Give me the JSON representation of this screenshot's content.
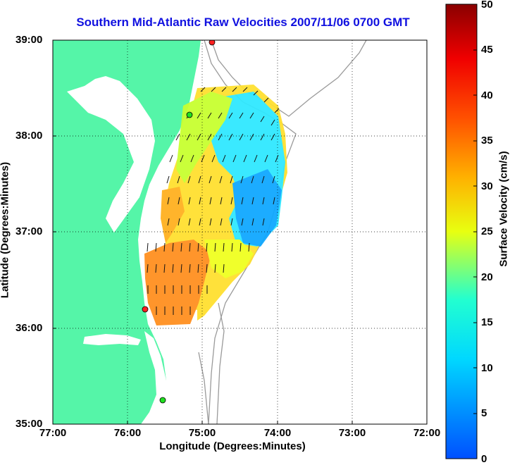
{
  "title": "Southern Mid-Atlantic Raw Velocities 2007/11/06 0700 GMT",
  "x_axis": {
    "label": "Longitude (Degrees:Minutes)",
    "ticks": [
      "77:00",
      "76:00",
      "75:00",
      "74:00",
      "73:00",
      "72:00"
    ]
  },
  "y_axis": {
    "label": "Latitude (Degrees:Minutes)",
    "ticks": [
      "39:00",
      "38:00",
      "37:00",
      "36:00",
      "35:00"
    ]
  },
  "colorbar": {
    "label": "Surface Velocity (cm/s)",
    "ticks": [
      "50",
      "45",
      "40",
      "35",
      "30",
      "25",
      "20",
      "15",
      "10",
      "5",
      "0"
    ],
    "min": 0,
    "max": 50,
    "colormap": "jet"
  },
  "map": {
    "lon_range": [
      -77,
      -72
    ],
    "lat_range": [
      35,
      39
    ],
    "grid": true,
    "land_color": "#55f5a8",
    "station_markers": [
      "red",
      "green",
      "red",
      "green"
    ]
  }
}
